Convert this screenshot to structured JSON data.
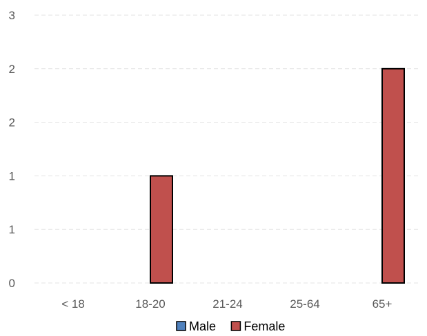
{
  "chart_data": {
    "type": "bar",
    "categories": [
      "< 18",
      "18-20",
      "21-24",
      "25-64",
      "65+"
    ],
    "series": [
      {
        "name": "Male",
        "values": [
          0,
          0,
          0,
          0,
          0
        ],
        "color": "#4f81bd"
      },
      {
        "name": "Female",
        "values": [
          0,
          1,
          0,
          0,
          2
        ],
        "color": "#c0504d"
      }
    ],
    "y_ticks": [
      {
        "value": 0,
        "label": "0"
      },
      {
        "value": 0.5,
        "label": "1"
      },
      {
        "value": 1,
        "label": "1"
      },
      {
        "value": 1.5,
        "label": "2"
      },
      {
        "value": 2,
        "label": "2"
      },
      {
        "value": 2.5,
        "label": "3"
      }
    ],
    "ylim": [
      0,
      2.5
    ],
    "grid": true,
    "legend_position": "bottom",
    "bar_outline_color": "#000000"
  }
}
